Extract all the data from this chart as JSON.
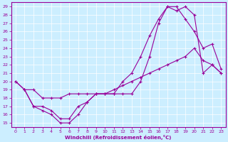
{
  "xlabel": "Windchill (Refroidissement éolien,°C)",
  "ylabel": "",
  "bg_color": "#cceeff",
  "line_color": "#990099",
  "grid_color": "#ffffff",
  "xlim": [
    -0.5,
    23.5
  ],
  "ylim": [
    14.5,
    29.5
  ],
  "xticks": [
    0,
    1,
    2,
    3,
    4,
    5,
    6,
    7,
    8,
    9,
    10,
    11,
    12,
    13,
    14,
    15,
    16,
    17,
    18,
    19,
    20,
    21,
    22,
    23
  ],
  "yticks": [
    15,
    16,
    17,
    18,
    19,
    20,
    21,
    22,
    23,
    24,
    25,
    26,
    27,
    28,
    29
  ],
  "line1_x": [
    0,
    1,
    2,
    3,
    4,
    5,
    6,
    7,
    8,
    9,
    10,
    11,
    12,
    13,
    14,
    15,
    16,
    17,
    18,
    19,
    20,
    21,
    22,
    23
  ],
  "line1_y": [
    20,
    19,
    17,
    16.5,
    16,
    15,
    15,
    16,
    17.5,
    18.5,
    18.5,
    18.5,
    18.5,
    18.5,
    20,
    23,
    27,
    29,
    29,
    27.5,
    26,
    24,
    24.5,
    21.5
  ],
  "line2_x": [
    1,
    2,
    3,
    4,
    5,
    6,
    7,
    8,
    9,
    10,
    11,
    12,
    13,
    14,
    15,
    16,
    17,
    18,
    19,
    20,
    21,
    22,
    23
  ],
  "line2_y": [
    19,
    17,
    17,
    16.5,
    15.5,
    15.5,
    17,
    17.5,
    18.5,
    18.5,
    18.5,
    20,
    21,
    23,
    25.5,
    27.5,
    29,
    28.5,
    29,
    28,
    21,
    22,
    21
  ],
  "line3_x": [
    0,
    1,
    2,
    3,
    4,
    5,
    6,
    7,
    8,
    9,
    10,
    11,
    12,
    13,
    14,
    15,
    16,
    17,
    18,
    19,
    20,
    21,
    22,
    23
  ],
  "line3_y": [
    20,
    19,
    19,
    18,
    18,
    18,
    18.5,
    18.5,
    18.5,
    18.5,
    18.5,
    19,
    19.5,
    20,
    20.5,
    21,
    21.5,
    22,
    22.5,
    23,
    24,
    22.5,
    22,
    21
  ]
}
